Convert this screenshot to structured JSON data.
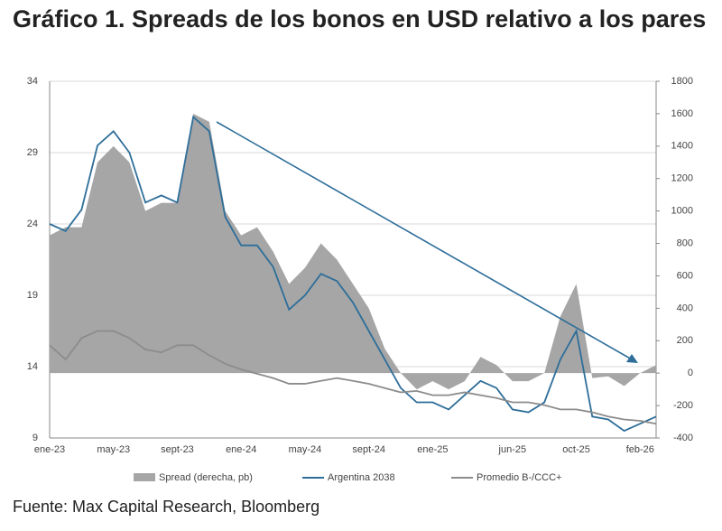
{
  "chart_data": {
    "type": "line",
    "title": "Gráfico 1.  Spreads de los bonos en USD relativo a los pares",
    "source": "Fuente: Max Capital Research, Bloomberg",
    "categories": [
      "ene-23",
      null,
      null,
      null,
      "may-23",
      null,
      null,
      null,
      "sept-23",
      null,
      null,
      null,
      "ene-24",
      null,
      null,
      null,
      "may-24",
      null,
      null,
      null,
      "sept-24",
      null,
      null,
      null,
      "ene-25",
      null,
      null,
      null,
      null,
      "jun-25",
      null,
      null,
      null,
      "oct-25",
      null,
      null,
      null,
      "feb-26",
      null
    ],
    "series": [
      {
        "name": "Spread (derecha, pb)",
        "color": "#a6a6a6",
        "axis": "y2",
        "kind": "area",
        "values": [
          850,
          900,
          900,
          1300,
          1400,
          1300,
          1000,
          1050,
          1050,
          1600,
          1550,
          1000,
          850,
          900,
          750,
          550,
          650,
          800,
          700,
          550,
          400,
          150,
          0,
          -100,
          -50,
          -100,
          -50,
          100,
          50,
          -50,
          -50,
          0,
          350,
          550,
          -30,
          -20,
          -80,
          0,
          50
        ]
      },
      {
        "name": "Argentina 2038",
        "color": "#2e6e99",
        "values": [
          24,
          23.5,
          25,
          29.5,
          30.5,
          29,
          25.5,
          26,
          25.5,
          31.5,
          30.5,
          24.5,
          22.5,
          22.5,
          21,
          18,
          19,
          20.5,
          20,
          18.5,
          16.5,
          14.5,
          12.5,
          11.5,
          11.5,
          11,
          12,
          13,
          12.5,
          11,
          10.8,
          11.5,
          14.5,
          16.5,
          10.5,
          10.3,
          9.5,
          10,
          10.5
        ]
      },
      {
        "name": "Promedio B-/CCC+",
        "color": "#8c8c8c",
        "values": [
          15.5,
          14.5,
          16,
          16.5,
          16.5,
          16,
          15.2,
          15,
          15.5,
          15.5,
          14.8,
          14.2,
          13.8,
          13.5,
          13.2,
          12.8,
          12.8,
          13,
          13.2,
          13,
          12.8,
          12.5,
          12.2,
          12.3,
          12,
          12,
          12.2,
          12,
          11.8,
          11.5,
          11.5,
          11.3,
          11,
          11,
          10.8,
          10.5,
          10.3,
          10.2,
          10
        ]
      }
    ],
    "ylim": [
      9,
      34
    ],
    "yticks": [
      9,
      14,
      19,
      24,
      29,
      34
    ],
    "y2lim": [
      -400,
      1800
    ],
    "y2ticks": [
      -400,
      -200,
      0,
      200,
      400,
      600,
      800,
      1000,
      1200,
      1400,
      1600,
      1800
    ],
    "grid": true
  }
}
